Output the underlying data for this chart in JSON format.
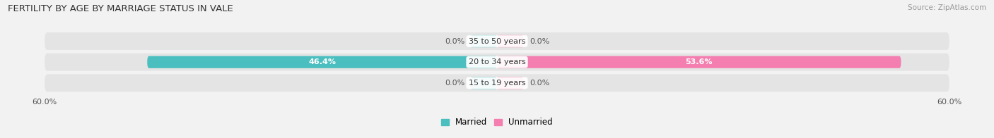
{
  "title": "FERTILITY BY AGE BY MARRIAGE STATUS IN VALE",
  "source": "Source: ZipAtlas.com",
  "categories": [
    "15 to 19 years",
    "20 to 34 years",
    "35 to 50 years"
  ],
  "married": [
    0.0,
    46.4,
    0.0
  ],
  "unmarried": [
    0.0,
    53.6,
    0.0
  ],
  "xlim": 60.0,
  "married_color": "#4bbfbf",
  "unmarried_color": "#f47eb0",
  "bar_height": 0.58,
  "label_fontsize": 8.0,
  "title_fontsize": 9.5,
  "source_fontsize": 7.5,
  "legend_fontsize": 8.5,
  "bg_color": "#f2f2f2",
  "bar_row_bg": "#e4e4e4",
  "value_label_color_inside": "#ffffff",
  "value_label_color_outside": "#555555",
  "category_label_color": "#333333",
  "tick_label_color": "#555555",
  "stub_size": 3.5
}
